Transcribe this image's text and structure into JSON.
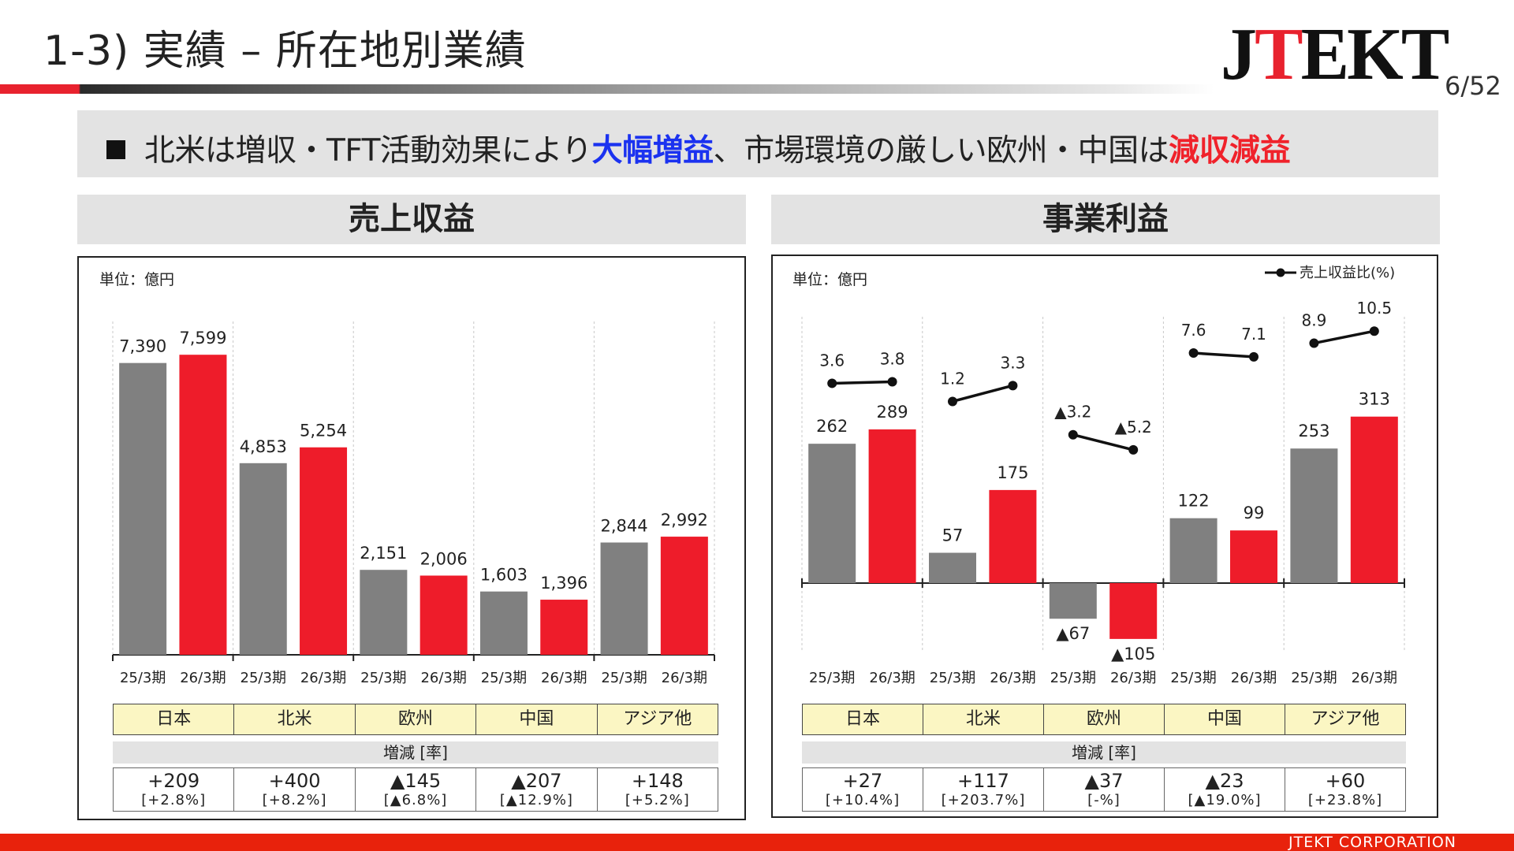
{
  "header": {
    "title": "1-3) 実績 – 所在地別業績",
    "logo": "JTEKT",
    "page_number": "6/52"
  },
  "headline": {
    "part1": "北米は増収・TFT活動効果により",
    "highlight_blue": "大幅増益",
    "part2": "、市場環境の厳しい欧州・中国は",
    "highlight_red": "減収減益"
  },
  "colors": {
    "prior_bar": "#808080",
    "current_bar": "#ee1c2a",
    "line": "#111111",
    "region_fill": "#fbf6c3",
    "accent": "#e8222e"
  },
  "revenue_panel": {
    "header": "売上収益",
    "unit": "単位：億円",
    "regions": [
      "日本",
      "北米",
      "欧州",
      "中国",
      "アジア他"
    ],
    "change_label": "増減 [率]",
    "changes": [
      {
        "amount": "+209",
        "rate": "[+2.8%]"
      },
      {
        "amount": "+400",
        "rate": "[+8.2%]"
      },
      {
        "amount": "▲145",
        "rate": "[▲6.8%]"
      },
      {
        "amount": "▲207",
        "rate": "[▲12.9%]"
      },
      {
        "amount": "+148",
        "rate": "[+5.2%]"
      }
    ]
  },
  "profit_panel": {
    "header": "事業利益",
    "unit": "単位：億円",
    "legend": "売上収益比(%)",
    "regions": [
      "日本",
      "北米",
      "欧州",
      "中国",
      "アジア他"
    ],
    "change_label": "増減 [率]",
    "changes": [
      {
        "amount": "+27",
        "rate": "[+10.4%]"
      },
      {
        "amount": "+117",
        "rate": "[+203.7%]"
      },
      {
        "amount": "▲37",
        "rate": "[-%]"
      },
      {
        "amount": "▲23",
        "rate": "[▲19.0%]"
      },
      {
        "amount": "+60",
        "rate": "[+23.8%]"
      }
    ]
  },
  "chart_data": [
    {
      "type": "bar",
      "categories": [
        "25/3期",
        "26/3期",
        "25/3期",
        "26/3期",
        "25/3期",
        "26/3期",
        "25/3期",
        "26/3期",
        "25/3期",
        "26/3期"
      ],
      "groups": [
        "日本",
        "北米",
        "欧州",
        "中国",
        "アジア他"
      ],
      "values": [
        7390,
        7599,
        4853,
        5254,
        2151,
        2006,
        1603,
        1396,
        2844,
        2992
      ],
      "value_labels": [
        "7,390",
        "7,599",
        "4,853",
        "5,254",
        "2,151",
        "2,006",
        "1,603",
        "1,396",
        "2,844",
        "2,992"
      ],
      "ylim": [
        0,
        9000
      ],
      "grid": false
    },
    {
      "type": "bar",
      "categories": [
        "25/3期",
        "26/3期",
        "25/3期",
        "26/3期",
        "25/3期",
        "26/3期",
        "25/3期",
        "26/3期",
        "25/3期",
        "26/3期"
      ],
      "groups": [
        "日本",
        "北米",
        "欧州",
        "中国",
        "アジア他"
      ],
      "values": [
        262,
        289,
        57,
        175,
        -67,
        -105,
        122,
        99,
        253,
        313
      ],
      "value_labels": [
        "262",
        "289",
        "57",
        "175",
        "▲67",
        "▲105",
        "122",
        "99",
        "253",
        "313"
      ],
      "ylim": [
        -140,
        550
      ],
      "series": [
        {
          "name": "売上収益比(%)",
          "type": "line",
          "values": [
            3.6,
            3.8,
            1.2,
            3.3,
            -3.2,
            -5.2,
            7.6,
            7.1,
            8.9,
            10.5
          ],
          "value_labels": [
            "3.6",
            "3.8",
            "1.2",
            "3.3",
            "▲3.2",
            "▲5.2",
            "7.6",
            "7.1",
            "8.9",
            "10.5"
          ]
        }
      ],
      "legend": "top-right",
      "grid": false
    }
  ],
  "footer": {
    "company": "JTEKT  CORPORATION"
  }
}
